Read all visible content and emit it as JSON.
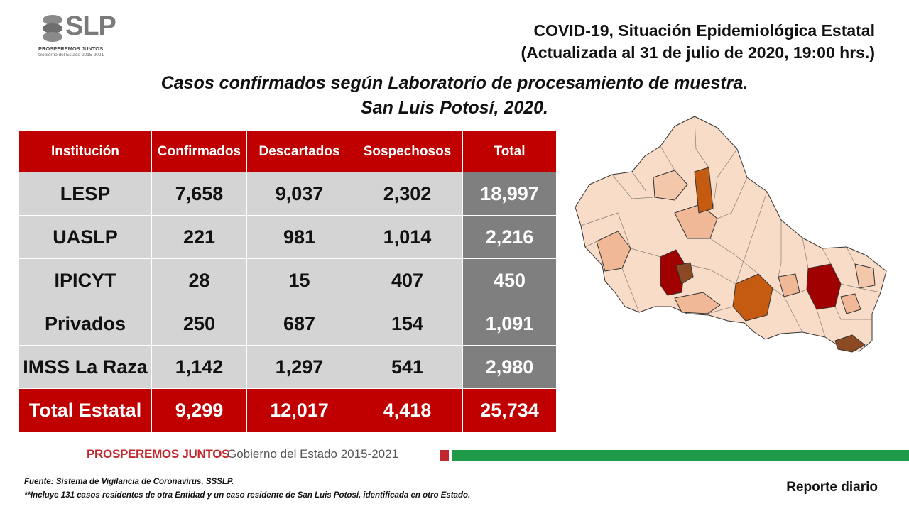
{
  "logo": {
    "text": "SLP",
    "line1": "PROSPEREMOS JUNTOS",
    "line2": "Gobierno del Estado 2015-2021"
  },
  "header": {
    "title": "COVID-19, Situación Epidemiológica Estatal",
    "update": "(Actualizada al 31 de julio de 2020, 19:00 hrs.)"
  },
  "subtitle": {
    "line1": "Casos confirmados según Laboratorio de procesamiento de muestra.",
    "line2": "San Luis Potosí, 2020."
  },
  "table": {
    "headers": [
      "Institución",
      "Confirmados",
      "Descartados",
      "Sospechosos",
      "Total"
    ],
    "rows": [
      [
        "LESP",
        "7,658",
        "9,037",
        "2,302",
        "18,997"
      ],
      [
        "UASLP",
        "221",
        "981",
        "1,014",
        "2,216"
      ],
      [
        "IPICYT",
        "28",
        "15",
        "407",
        "450"
      ],
      [
        "Privados",
        "250",
        "687",
        "154",
        "1,091"
      ],
      [
        "IMSS La Raza",
        "1,142",
        "1,297",
        "541",
        "2,980"
      ]
    ],
    "total": [
      "Total Estatal",
      "9,299",
      "12,017",
      "4,418",
      "25,734"
    ]
  },
  "map": {
    "icon": "state-map-icon",
    "colors": {
      "light": "#f9dcc8",
      "medium": "#f0b896",
      "dark_orange": "#c55a11",
      "dark_red": "#a00000",
      "brown": "#8b4a24"
    }
  },
  "footer": {
    "brand_bold": "PROSPEREMOS JUNTOS",
    "brand_regular": "Gobierno del Estado 2015-2021",
    "source": "Fuente: Sistema de Vigilancia de Coronavirus, SSSLP.",
    "note": "**Incluye 131 casos residentes de otra Entidad y un caso residente de San Luis Potosí, identificada en otro Estado.",
    "report": "Reporte diario",
    "colors": {
      "red": "#c0282d",
      "green": "#1f9a48"
    }
  }
}
